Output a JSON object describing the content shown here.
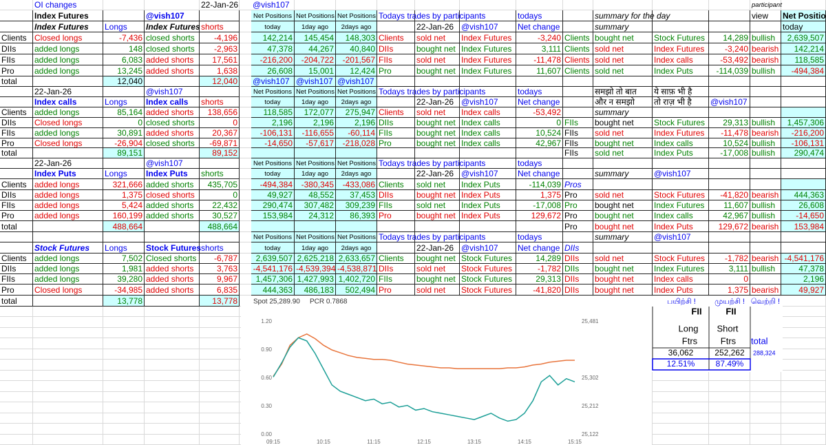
{
  "sheet": {
    "rows": [
      [
        null,
        "OI changes",
        null,
        null,
        "22-Jan-26",
        null,
        "@vish107",
        null,
        null,
        null,
        null,
        null,
        null,
        null,
        null,
        null,
        null,
        "participant"
      ],
      [
        null,
        "Index Futures",
        null,
        "@vish107",
        null,
        null,
        "Net Positions",
        "Net Positions",
        "Net Positions",
        "Todays trades by participants",
        null,
        null,
        "todays",
        null,
        "summary for the day",
        null,
        null,
        "view",
        "Net Position"
      ],
      [
        null,
        "Index Futures",
        "Longs",
        "Index Futures",
        "shorts",
        null,
        "today",
        "1day ago",
        "2days ago",
        null,
        "22-Jan-26",
        "@vish107",
        "Net change",
        null,
        "summary",
        null,
        null,
        null,
        "today"
      ],
      [
        "Clients",
        "Closed longs",
        "-7,436",
        "closed shorts",
        "-4,196",
        null,
        "142,214",
        "145,454",
        "148,303",
        "Clients",
        "sold net",
        "Index Futures",
        "-3,240",
        "Clients",
        "bought net",
        "Stock Futures",
        "14,289",
        "bullish",
        "2,639,507"
      ],
      [
        "DIIs",
        "added longs",
        "148",
        "closed shorts",
        "-2,963",
        null,
        "47,378",
        "44,267",
        "40,840",
        "DIIs",
        "bought net",
        "Index Futures",
        "3,111",
        "Clients",
        "sold net",
        "Index Futures",
        "-3,240",
        "bearish",
        "142,214"
      ],
      [
        "FIIs",
        "added longs",
        "6,083",
        "added shorts",
        "17,561",
        null,
        "-216,200",
        "-204,722",
        "-201,567",
        "FIIs",
        "sold net",
        "Index Futures",
        "-11,478",
        "Clients",
        "sold net",
        "Index calls",
        "-53,492",
        "bearish",
        "118,585"
      ],
      [
        "Pro",
        "added longs",
        "13,245",
        "added shorts",
        "1,638",
        null,
        "26,608",
        "15,001",
        "12,424",
        "Pro",
        "bought net",
        "Index Futures",
        "11,607",
        "Clients",
        "sold net",
        "Index Puts",
        "-114,039",
        "bullish",
        "-494,384"
      ],
      [
        "total",
        null,
        "12,040",
        null,
        "12,040",
        null,
        "@vish107",
        "@vish107",
        "@vish107"
      ],
      [
        null,
        "22-Jan-26",
        null,
        "@vish107",
        null,
        null,
        "Net Positions",
        "Net Positions",
        "Net Positions",
        "Todays trades by participants",
        null,
        null,
        "todays",
        null,
        "समझो तो बात",
        "ये साफ़ भी है"
      ],
      [
        null,
        "Index calls",
        "Longs",
        "Index calls",
        "shorts",
        null,
        "today",
        "1day ago",
        "2days ago",
        null,
        "22-Jan-26",
        "@vish107",
        "Net change",
        null,
        "और न समझो",
        "तो राज़ भी है",
        "@vish107"
      ],
      [
        "Clients",
        "added longs",
        "85,164",
        "added shorts",
        "138,656",
        null,
        "118,585",
        "172,077",
        "275,947",
        "Clients",
        "sold net",
        "Index calls",
        "-53,492",
        null,
        "summary"
      ],
      [
        "DIIs",
        "Closed longs",
        "0",
        "closed shorts",
        "0",
        null,
        "2,196",
        "2,196",
        "2,196",
        "DIIs",
        "bought net",
        "Index calls",
        "0",
        "FIIs",
        "bought net",
        "Stock Futures",
        "29,313",
        "bullish",
        "1,457,306"
      ],
      [
        "FIIs",
        "added longs",
        "30,891",
        "added shorts",
        "20,367",
        null,
        "-106,131",
        "-116,655",
        "-60,114",
        "FIIs",
        "bought net",
        "Index calls",
        "10,524",
        "FIIs",
        "sold net",
        "Index Futures",
        "-11,478",
        "bearish",
        "-216,200"
      ],
      [
        "Pro",
        "Closed longs",
        "-26,904",
        "closed shorts",
        "-69,871",
        null,
        "-14,650",
        "-57,617",
        "-218,028",
        "Pro",
        "bought net",
        "Index calls",
        "42,967",
        "FIIs",
        "bought net",
        "Index calls",
        "10,524",
        "bullish",
        "-106,131"
      ],
      [
        "total",
        null,
        "89,151",
        null,
        "89,152",
        null,
        null,
        null,
        null,
        null,
        null,
        null,
        null,
        "FIIs",
        "sold net",
        "Index Puts",
        "-17,008",
        "bullish",
        "290,474"
      ],
      [
        null,
        "22-Jan-26",
        null,
        "@vish107",
        null,
        null,
        "Net Positions",
        "Net Positions",
        "Net Positions",
        "Todays trades by participants",
        null,
        null,
        "todays"
      ],
      [
        null,
        "Index Puts",
        "Longs",
        "Index Puts",
        "shorts",
        null,
        "today",
        "1day ago",
        "2days ago",
        null,
        "22-Jan-26",
        "@vish107",
        "Net change",
        null,
        "summary",
        "@vish107"
      ],
      [
        "Clients",
        "added longs",
        "321,666",
        "added shorts",
        "435,705",
        null,
        "-494,384",
        "-380,345",
        "-433,086",
        "Clients",
        "sold net",
        "Index Puts",
        "-114,039",
        "Pros"
      ],
      [
        "DIIs",
        "added longs",
        "1,375",
        "closed shorts",
        "0",
        null,
        "49,927",
        "48,552",
        "37,453",
        "DIIs",
        "bought net",
        "Index Puts",
        "1,375",
        "Pro",
        "sold net",
        "Stock Futures",
        "-41,820",
        "bearish",
        "444,363"
      ],
      [
        "FIIs",
        "added longs",
        "5,424",
        "added shorts",
        "22,432",
        null,
        "290,474",
        "307,482",
        "309,239",
        "FIIs",
        "sold net",
        "Index Puts",
        "-17,008",
        "Pro",
        "bought net",
        "Index Futures",
        "11,607",
        "bullish",
        "26,608"
      ],
      [
        "Pro",
        "added longs",
        "160,199",
        "added shorts",
        "30,527",
        null,
        "153,984",
        "24,312",
        "86,393",
        "Pro",
        "bought net",
        "Index Puts",
        "129,672",
        "Pro",
        "bought net",
        "Index calls",
        "42,967",
        "bullish",
        "-14,650"
      ],
      [
        "total",
        null,
        "488,664",
        null,
        "488,664",
        null,
        null,
        null,
        null,
        null,
        null,
        null,
        null,
        "Pro",
        "bought net",
        "Index Puts",
        "129,672",
        "bearish",
        "153,984"
      ],
      [
        null,
        null,
        null,
        null,
        null,
        null,
        "Net Positions",
        "Net Positions",
        "Net Positions",
        "Todays trades by participants",
        null,
        null,
        "todays",
        null,
        "summary",
        "@vish107"
      ],
      [
        null,
        "Stock Futures",
        "Longs",
        "Stock Futures",
        "shorts",
        null,
        "today",
        "1day ago",
        "2days ago",
        null,
        "22-Jan-26",
        "@vish107",
        "Net change",
        "DIIs"
      ],
      [
        "Clients",
        "added longs",
        "7,502",
        "Closed shorts",
        "-6,787",
        null,
        "2,639,507",
        "2,625,218",
        "2,633,657",
        "Clients",
        "bought net",
        "Stock Futures",
        "14,289",
        "DIIs",
        "sold net",
        "Stock Futures",
        "-1,782",
        "bearish",
        "-4,541,176"
      ],
      [
        "DIIs",
        "added longs",
        "1,981",
        "added shorts",
        "3,763",
        null,
        "-4,541,176",
        "-4,539,394",
        "-4,538,871",
        "DIIs",
        "sold net",
        "Stock Futures",
        "-1,782",
        "DIIs",
        "bought net",
        "Index Futures",
        "3,111",
        "bullish",
        "47,378"
      ],
      [
        "FIIs",
        "added longs",
        "39,280",
        "added shorts",
        "9,967",
        null,
        "1,457,306",
        "1,427,993",
        "1,402,720",
        "FIIs",
        "bought net",
        "Stock Futures",
        "29,313",
        "DIIs",
        "bought net",
        "Index calls",
        "0",
        null,
        "2,196"
      ],
      [
        "Pro",
        "Closed longs",
        "-34,985",
        "added shorts",
        "6,835",
        null,
        "444,363",
        "486,183",
        "502,494",
        "Pro",
        "sold net",
        "Stock Futures",
        "-41,820",
        "DIIs",
        "bought net",
        "Index Puts",
        "1,375",
        "bearish",
        "49,927"
      ],
      [
        "total",
        null,
        "13,778",
        null,
        "13,778"
      ]
    ]
  },
  "fii_box": {
    "tagline": [
      "பயிற்சி !",
      "முயற்சி !",
      "வெற்றி !"
    ],
    "headers": [
      "FII",
      "FII"
    ],
    "labels": [
      "Long",
      "Short"
    ],
    "sub": [
      "Ftrs",
      "Ftrs",
      "total"
    ],
    "values": [
      "36,062",
      "252,262",
      "288,324"
    ],
    "percent": [
      "12.51%",
      "87.49%"
    ]
  },
  "chart_data": {
    "type": "line",
    "annotations": [
      "Spot 25,289.90",
      "PCR 0.7868"
    ],
    "x": [
      "09:15",
      "09:25",
      "09:35",
      "09:45",
      "09:55",
      "10:05",
      "10:15",
      "10:25",
      "10:35",
      "10:45",
      "10:55",
      "11:05",
      "11:15",
      "11:25",
      "11:35",
      "11:45",
      "11:55",
      "12:05",
      "12:15",
      "12:25",
      "12:35",
      "12:45",
      "12:55",
      "13:05",
      "13:15",
      "13:25",
      "13:35",
      "13:45",
      "13:55",
      "14:05",
      "14:15",
      "14:25",
      "14:35",
      "14:45",
      "14:55",
      "15:05",
      "15:15"
    ],
    "xticks": [
      "09:15",
      "10:15",
      "11:15",
      "12:15",
      "13:15",
      "14:15",
      "15:15"
    ],
    "series": [
      {
        "color": "#e8743b",
        "values": [
          0.62,
          0.75,
          0.95,
          1.03,
          1.07,
          1.02,
          0.95,
          0.9,
          0.87,
          0.84,
          0.82,
          0.81,
          0.8,
          0.8,
          0.79,
          0.77,
          0.75,
          0.74,
          0.73,
          0.72,
          0.71,
          0.71,
          0.7,
          0.7,
          0.7,
          0.7,
          0.7,
          0.7,
          0.71,
          0.71,
          0.72,
          0.74,
          0.75,
          0.77,
          0.78,
          0.79,
          0.79
        ]
      },
      {
        "color": "#1a9e96",
        "axis": "y2",
        "values": [
          25305,
          25350,
          25400,
          25430,
          25420,
          25380,
          25330,
          25280,
          25260,
          25250,
          25240,
          25230,
          25235,
          25220,
          25225,
          25210,
          25215,
          25200,
          25205,
          25195,
          25190,
          25185,
          25180,
          25175,
          25170,
          25180,
          25190,
          25175,
          25165,
          25170,
          25190,
          25230,
          25290,
          25310,
          25280,
          25300,
          25290
        ]
      }
    ],
    "ylim": [
      0,
      1.2
    ],
    "yticks": [
      {
        "value": 0,
        "label": "0.00"
      },
      {
        "value": 0.3,
        "label": "0.30"
      },
      {
        "value": 0.6,
        "label": "0.60"
      },
      {
        "value": 0.9,
        "label": "0.90"
      },
      {
        "value": 1.2,
        "label": "1.20"
      }
    ],
    "y2lim": [
      25122,
      25481
    ],
    "y2ticks": [
      {
        "value": 25122,
        "label": "25,122"
      },
      {
        "value": 25212,
        "label": "25,212"
      },
      {
        "value": 25302,
        "label": "25,302"
      },
      {
        "value": 25481,
        "label": "25,481"
      }
    ]
  }
}
